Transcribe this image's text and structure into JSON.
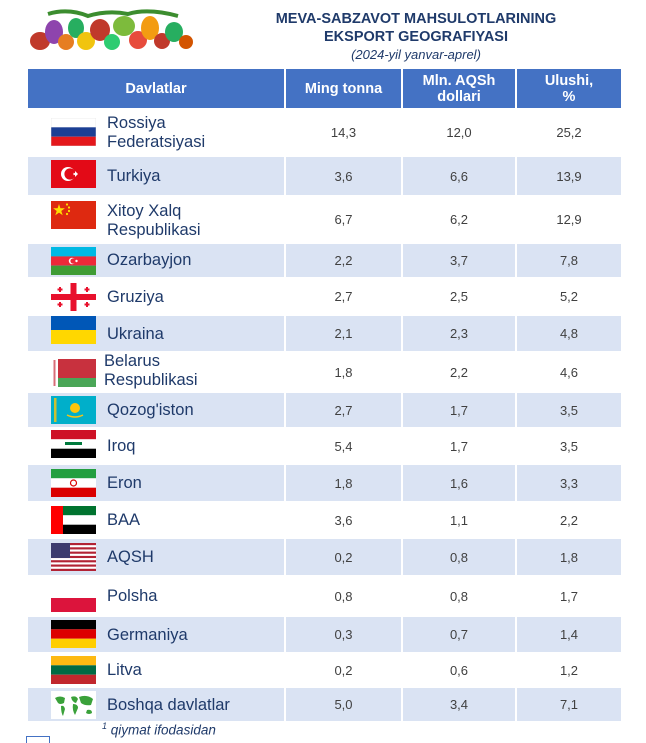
{
  "title": {
    "line1": "MEVA-SABZAVOT MAHSULOTLARINING",
    "line2": "EKSPORT GEOGRAFIYASI",
    "subtitle": "(2024-yil yanvar-aprel)"
  },
  "headers": {
    "country": "Davlatlar",
    "tonnes": "Ming tonna",
    "usd_line1": "Mln. AQSh",
    "usd_line2": "dollari",
    "share_line1": "Ulushi,",
    "share_line2": "%"
  },
  "rows": [
    {
      "line1": "Rossiya",
      "line2": "Federatsiyasi",
      "tonnes": "14,3",
      "usd": "12,0",
      "share": "25,2"
    },
    {
      "line1": "Turkiya",
      "line2": "",
      "tonnes": "3,6",
      "usd": "6,6",
      "share": "13,9"
    },
    {
      "line1": "Xitoy Xalq",
      "line2": "Respublikasi",
      "tonnes": "6,7",
      "usd": "6,2",
      "share": "12,9"
    },
    {
      "line1": "Ozarbayjon",
      "line2": "",
      "tonnes": "2,2",
      "usd": "3,7",
      "share": "7,8"
    },
    {
      "line1": "Gruziya",
      "line2": "",
      "tonnes": "2,7",
      "usd": "2,5",
      "share": "5,2"
    },
    {
      "line1": "Ukraina",
      "line2": "",
      "tonnes": "2,1",
      "usd": "2,3",
      "share": "4,8"
    },
    {
      "line1": "Belarus",
      "line2": "Respublikasi",
      "tonnes": "1,8",
      "usd": "2,2",
      "share": "4,6"
    },
    {
      "line1": "Qozog'iston",
      "line2": "",
      "tonnes": "2,7",
      "usd": "1,7",
      "share": "3,5"
    },
    {
      "line1": "Iroq",
      "line2": "",
      "tonnes": "5,4",
      "usd": "1,7",
      "share": "3,5"
    },
    {
      "line1": "Eron",
      "line2": "",
      "tonnes": "1,8",
      "usd": "1,6",
      "share": "3,3"
    },
    {
      "line1": "BAA",
      "line2": "",
      "tonnes": "3,6",
      "usd": "1,1",
      "share": "2,2"
    },
    {
      "line1": "AQSH",
      "line2": "",
      "tonnes": "0,2",
      "usd": "0,8",
      "share": "1,8"
    },
    {
      "line1": "Polsha",
      "line2": "",
      "tonnes": "0,8",
      "usd": "0,8",
      "share": "1,7"
    },
    {
      "line1": "Germaniya",
      "line2": "",
      "tonnes": "0,3",
      "usd": "0,7",
      "share": "1,4"
    },
    {
      "line1": "Litva",
      "line2": "",
      "tonnes": "0,2",
      "usd": "0,6",
      "share": "1,2"
    },
    {
      "line1": "Boshqa davlatlar",
      "line2": "",
      "tonnes": "5,0",
      "usd": "3,4",
      "share": "7,1"
    }
  ],
  "footnote": {
    "mark": "1",
    "text": "qiymat ifodasidan"
  },
  "colors": {
    "header": "#4472c4",
    "band": "#dae3f3",
    "title": "#1f3a6a"
  }
}
